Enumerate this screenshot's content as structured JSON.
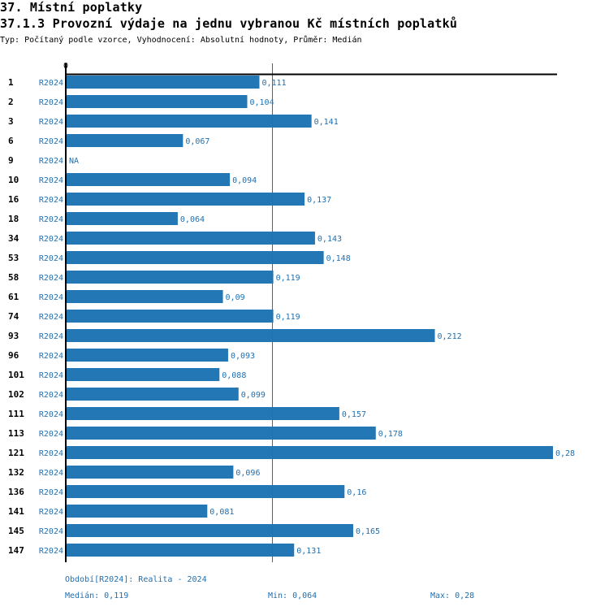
{
  "header": {
    "section": "37. Místní poplatky",
    "title": "37.1.3 Provozní výdaje na jednu vybranou Kč místních poplatků",
    "subtitle": "Typ: Počítaný podle vzorce, Vyhodnocení: Absolutní hodnoty, Průměr: Medián"
  },
  "footer": {
    "period": "Období[R2024]: Realita - 2024",
    "median": "Medián: 0,119",
    "min": "Min: 0,064",
    "max": "Max: 0,28"
  },
  "colors": {
    "bar": "#2277b4",
    "text_blue": "#1f6fb0",
    "median_line": "#2a6ea6",
    "axis": "#000000"
  },
  "chart_data": {
    "type": "bar",
    "orientation": "horizontal",
    "title": "37.1.3 Provozní výdaje na jednu vybranou Kč místních poplatků",
    "xlabel": "",
    "ylabel": "",
    "xlim": [
      0,
      0.28
    ],
    "x_ticks": [
      "0"
    ],
    "grid": false,
    "legend": "none",
    "series_label": "R2024",
    "reference_lines": [
      {
        "name": "Medián",
        "value": 0.119
      }
    ],
    "categories": [
      "1",
      "2",
      "3",
      "6",
      "9",
      "10",
      "16",
      "18",
      "34",
      "53",
      "58",
      "61",
      "74",
      "93",
      "96",
      "101",
      "102",
      "111",
      "113",
      "121",
      "132",
      "136",
      "141",
      "145",
      "147"
    ],
    "values": [
      0.111,
      0.104,
      0.141,
      0.067,
      null,
      0.094,
      0.137,
      0.064,
      0.143,
      0.148,
      0.119,
      0.09,
      0.119,
      0.212,
      0.093,
      0.088,
      0.099,
      0.157,
      0.178,
      0.28,
      0.096,
      0.16,
      0.081,
      0.165,
      0.131
    ],
    "value_labels": [
      "0,111",
      "0,104",
      "0,141",
      "0,067",
      "NA",
      "0,094",
      "0,137",
      "0,064",
      "0,143",
      "0,148",
      "0,119",
      "0,09",
      "0,119",
      "0,212",
      "0,093",
      "0,088",
      "0,099",
      "0,157",
      "0,178",
      "0,28",
      "0,096",
      "0,16",
      "0,081",
      "0,165",
      "0,131"
    ],
    "stats": {
      "median": 0.119,
      "min": 0.064,
      "max": 0.28
    }
  }
}
